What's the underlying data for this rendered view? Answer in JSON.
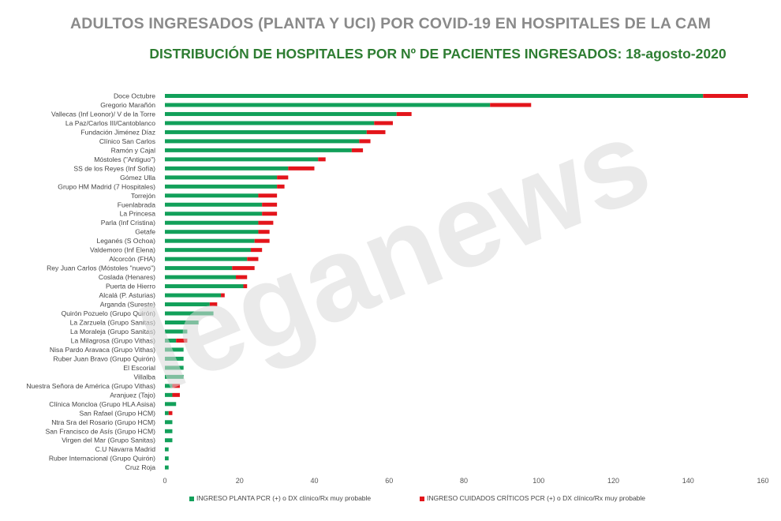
{
  "title": "ADULTOS INGRESADOS (PLANTA Y UCI) POR COVID-19 EN HOSPITALES DE LA CAM",
  "subtitle": "DISTRIBUCIÓN DE HOSPITALES POR Nº DE PACIENTES INGRESADOS: 18-agosto-2020",
  "watermark_text": "leganews",
  "colors": {
    "planta": "#12a05a",
    "uci": "#e3151b",
    "title": "#8a8a8a",
    "subtitle": "#2e7d32"
  },
  "chart_data": {
    "type": "bar",
    "orientation": "horizontal",
    "stacked": true,
    "title": "DISTRIBUCIÓN DE HOSPITALES POR Nº DE PACIENTES INGRESADOS: 18-agosto-2020",
    "xlim": [
      0,
      160
    ],
    "xticks": [
      0,
      20,
      40,
      60,
      80,
      100,
      120,
      140,
      160
    ],
    "grid": false,
    "legend_position": "bottom",
    "categories": [
      "Doce Octubre",
      "Gregorio Marañón",
      "Vallecas (Inf Leonor)/ V de la Torre",
      "La Paz/Carlos III/Cantoblanco",
      "Fundación Jiménez Díaz",
      "Clínico San Carlos",
      "Ramón y Cajal",
      "Móstoles (\"Antiguo\")",
      "SS de los Reyes (Inf Sofía)",
      "Gómez Ulla",
      "Grupo HM Madrid (7 Hospitales)",
      "Torrejón",
      "Fuenlabrada",
      "La Princesa",
      "Parla (Inf Cristina)",
      "Getafe",
      "Leganés (S Ochoa)",
      "Valdemoro (Inf Elena)",
      "Alcorcón (FHA)",
      "Rey Juan Carlos (Móstoles \"nuevo\")",
      "Coslada (Henares)",
      "Puerta de Hierro",
      "Alcalá (P. Asturias)",
      "Arganda (Sureste)",
      "Quirón Pozuelo (Grupo Quirón)",
      "La Zarzuela (Grupo Sanitas)",
      "La Moraleja (Grupo Sanitas)",
      "La Milagrosa (Grupo Vithas)",
      "Nisa Pardo Aravaca (Grupo Vithas)",
      "Ruber Juan Bravo (Grupo Quirón)",
      "El Escorial",
      "Villalba",
      "Nuestra Señora de América (Grupo Vithas)",
      "Aranjuez (Tajo)",
      "Clínica Moncloa (Grupo HLA Asisa)",
      "San Rafael (Grupo HCM)",
      "Ntra Sra del Rosario (Grupo HCM)",
      "San Francisco de Asís (Grupo HCM)",
      "Virgen del Mar (Grupo Sanitas)",
      "C.U Navarra Madrid",
      "Ruber Internacional (Grupo Quirón)",
      "Cruz Roja"
    ],
    "series": [
      {
        "name": "INGRESO PLANTA PCR (+) o DX clínico/Rx muy probable",
        "values": [
          144,
          87,
          62,
          56,
          54,
          52,
          50,
          41,
          33,
          30,
          30,
          25,
          26,
          26,
          25,
          25,
          24,
          23,
          22,
          18,
          19,
          21,
          15,
          12,
          13,
          9,
          6,
          3,
          5,
          5,
          5,
          5,
          2,
          2,
          3,
          1,
          2,
          2,
          2,
          1,
          1,
          1
        ]
      },
      {
        "name": "INGRESO CUIDADOS CRÍTICOS PCR (+) o DX clínico/Rx muy probable",
        "values": [
          12,
          11,
          4,
          5,
          5,
          3,
          3,
          2,
          7,
          3,
          2,
          5,
          4,
          4,
          4,
          3,
          4,
          3,
          3,
          6,
          3,
          1,
          1,
          2,
          0,
          0,
          0,
          3,
          0,
          0,
          0,
          0,
          2,
          2,
          0,
          1,
          0,
          0,
          0,
          0,
          0,
          0
        ]
      }
    ]
  }
}
